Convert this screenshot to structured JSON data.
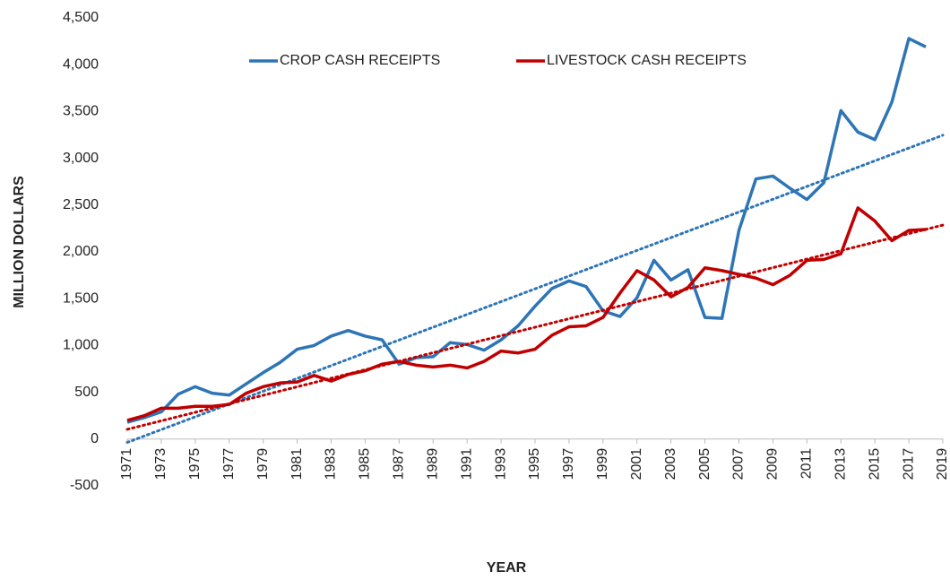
{
  "chart_data": {
    "type": "line",
    "x_label": "YEAR",
    "y_label": "MILLION DOLLARS",
    "x": [
      1971,
      1972,
      1973,
      1974,
      1975,
      1976,
      1977,
      1978,
      1979,
      1980,
      1981,
      1982,
      1983,
      1984,
      1985,
      1986,
      1987,
      1988,
      1989,
      1990,
      1991,
      1992,
      1993,
      1994,
      1995,
      1996,
      1997,
      1998,
      1999,
      2000,
      2001,
      2002,
      2003,
      2004,
      2005,
      2006,
      2007,
      2008,
      2009,
      2010,
      2011,
      2012,
      2013,
      2014,
      2015,
      2016,
      2017,
      2018
    ],
    "series": [
      {
        "name": "CROP CASH RECEIPTS",
        "color": "#2e75b6",
        "values": [
          180,
          230,
          290,
          480,
          560,
          490,
          470,
          590,
          710,
          820,
          960,
          1000,
          1100,
          1160,
          1100,
          1060,
          800,
          870,
          880,
          1030,
          1010,
          950,
          1060,
          1210,
          1420,
          1610,
          1690,
          1630,
          1370,
          1310,
          1510,
          1910,
          1700,
          1810,
          1300,
          1290,
          2230,
          2780,
          2810,
          2680,
          2560,
          2740,
          3510,
          3280,
          3200,
          3600,
          4280,
          4190
        ]
      },
      {
        "name": "LIVESTOCK CASH RECEIPTS",
        "color": "#c00000",
        "values": [
          200,
          250,
          330,
          330,
          350,
          350,
          370,
          490,
          560,
          600,
          610,
          680,
          620,
          690,
          730,
          800,
          830,
          790,
          770,
          790,
          760,
          830,
          940,
          920,
          960,
          1110,
          1200,
          1210,
          1300,
          1560,
          1800,
          1700,
          1520,
          1620,
          1830,
          1800,
          1760,
          1720,
          1650,
          1750,
          1910,
          1920,
          1980,
          2470,
          2330,
          2120,
          2230,
          2240
        ]
      }
    ],
    "trendline": "linear",
    "xlim": [
      1971,
      2019
    ],
    "xticks": [
      1971,
      1973,
      1975,
      1977,
      1979,
      1981,
      1983,
      1985,
      1987,
      1989,
      1991,
      1993,
      1995,
      1997,
      1999,
      2001,
      2003,
      2005,
      2007,
      2009,
      2011,
      2013,
      2015,
      2017,
      2019
    ],
    "ylim": [
      -500,
      4500
    ],
    "yticks": [
      -500,
      0,
      500,
      {
        "value": 1000,
        "label": "1,000"
      },
      {
        "value": 1500,
        "label": "1,500"
      },
      {
        "value": 2000,
        "label": "2,000"
      },
      {
        "value": 2500,
        "label": "2,500"
      },
      {
        "value": 3000,
        "label": "3,000"
      },
      {
        "value": 3500,
        "label": "3,500"
      },
      {
        "value": 4000,
        "label": "4,000"
      },
      {
        "value": 4500,
        "label": "4,500"
      }
    ],
    "grid": false,
    "legend": "top"
  }
}
